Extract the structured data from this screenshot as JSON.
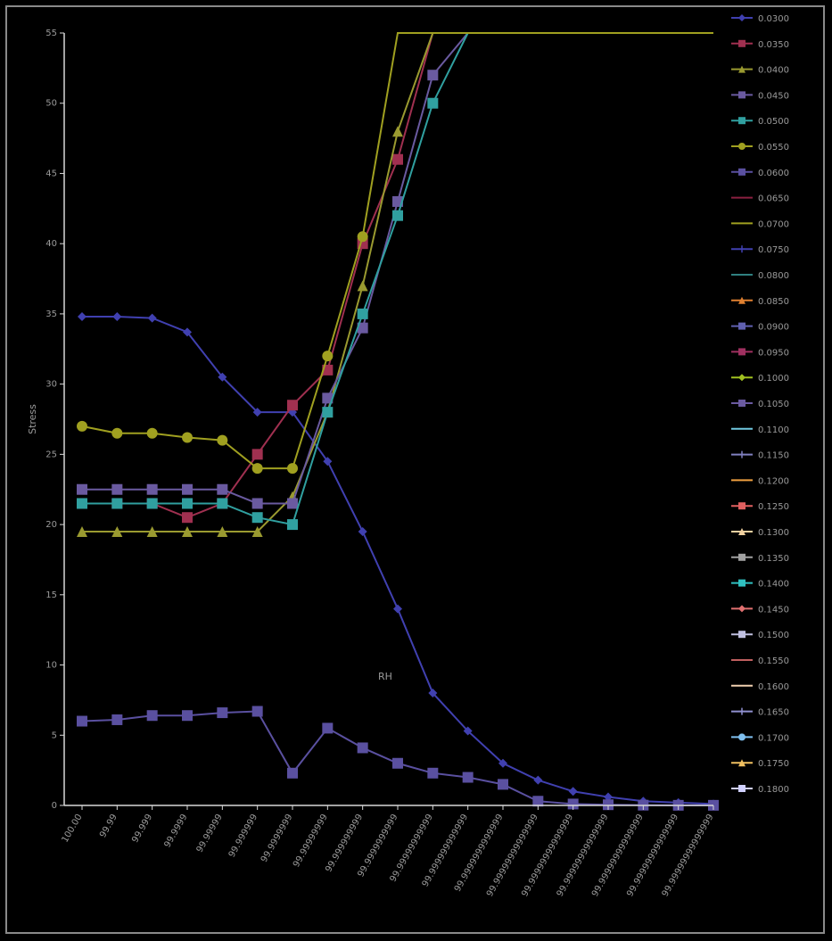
{
  "chart_data": {
    "type": "line",
    "title": "",
    "xlabel": "RH",
    "ylabel": "Stress",
    "ylim": [
      0,
      55
    ],
    "y_ticks": [
      "0",
      "5",
      "10",
      "15",
      "20",
      "25",
      "30",
      "35",
      "40",
      "45",
      "50",
      "55"
    ],
    "grid": false,
    "legend_position": "right",
    "colors": {
      "background": "#000000",
      "axis": "#d8d8d8",
      "tick_text": "#9a9a9a",
      "frame": "#8a8a8a"
    },
    "x": [
      "100.00",
      "99.99",
      "99.999",
      "99.9999",
      "99.99999",
      "99.999999",
      "99.9999999",
      "99.99999999",
      "99.999999999",
      "99.9999999999",
      "99.99999999999",
      "99.999999999999",
      "99.9999999999999",
      "99.99999999999999",
      "99.99999999999999",
      "99.99999999999999",
      "99.99999999999999",
      "99.99999999999999",
      "99.99999999999999"
    ],
    "series": [
      {
        "name": "",
        "color": "#4040b0",
        "marker": "diamond",
        "values": [
          34.8,
          34.8,
          34.7,
          33.7,
          30.5,
          28.0,
          28.0,
          24.5,
          19.5,
          14.0,
          8.0,
          5.3,
          3.0,
          1.8,
          1.0,
          0.6,
          0.3,
          0.2,
          0.1
        ]
      },
      {
        "name": "",
        "color": "#a03050",
        "marker": "square",
        "values": [
          21.5,
          21.5,
          21.5,
          20.5,
          21.5,
          25.0,
          28.5,
          31.0,
          40.0,
          46.0,
          55,
          55,
          55,
          55,
          55,
          55,
          55,
          55,
          55
        ]
      },
      {
        "name": "",
        "color": "#9a9a30",
        "marker": "triangle",
        "values": [
          19.5,
          19.5,
          19.5,
          19.5,
          19.5,
          19.5,
          22.0,
          28.0,
          37.0,
          48.0,
          55,
          55,
          55,
          55,
          55,
          55,
          55,
          55,
          55
        ]
      },
      {
        "name": "",
        "color": "#6a5aa0",
        "marker": "square",
        "values": [
          22.5,
          22.5,
          22.5,
          22.5,
          22.5,
          21.5,
          21.5,
          29.0,
          34.0,
          43.0,
          52.0,
          55,
          55,
          55,
          55,
          55,
          55,
          55,
          55
        ]
      },
      {
        "name": "",
        "color": "#30a0a0",
        "marker": "square",
        "values": [
          21.5,
          21.5,
          21.5,
          21.5,
          21.5,
          20.5,
          20.0,
          28.0,
          35.0,
          42.0,
          50.0,
          55,
          55,
          55,
          55,
          55,
          55,
          55,
          55
        ]
      },
      {
        "name": "",
        "color": "#a0a020",
        "marker": "circle",
        "values": [
          27.0,
          26.5,
          26.5,
          26.2,
          26.0,
          24.0,
          24.0,
          32.0,
          40.5,
          55,
          55,
          55,
          55,
          55,
          55,
          55,
          55,
          55,
          55
        ]
      },
      {
        "name": "",
        "color": "#5a50a0",
        "marker": "square",
        "values": [
          6.0,
          6.1,
          6.4,
          6.4,
          6.6,
          6.7,
          2.3,
          5.5,
          4.1,
          3.0,
          2.3,
          2.0,
          1.5,
          0.3,
          0.1,
          0.05,
          0.02,
          0.01,
          0.01
        ]
      }
    ]
  },
  "legend_entries": [
    {
      "label": "0.0300",
      "color": "#4040b0",
      "marker": "diamond"
    },
    {
      "label": "0.0350",
      "color": "#a03050",
      "marker": "square"
    },
    {
      "label": "0.0400",
      "color": "#9a9a30",
      "marker": "triangle"
    },
    {
      "label": "0.0450",
      "color": "#6a5aa0",
      "marker": "square"
    },
    {
      "label": "0.0500",
      "color": "#30a0a0",
      "marker": "square"
    },
    {
      "label": "0.0550",
      "color": "#a0a020",
      "marker": "circle"
    },
    {
      "label": "0.0600",
      "color": "#5a50a0",
      "marker": "square"
    },
    {
      "label": "0.0650",
      "color": "#8a2040",
      "marker": "none"
    },
    {
      "label": "0.0700",
      "color": "#a0a020",
      "marker": "none"
    },
    {
      "label": "0.0750",
      "color": "#4040b0",
      "marker": "cross"
    },
    {
      "label": "0.0800",
      "color": "#308080",
      "marker": "none"
    },
    {
      "label": "0.0850",
      "color": "#e08030",
      "marker": "triangle"
    },
    {
      "label": "0.0900",
      "color": "#6060b0",
      "marker": "square"
    },
    {
      "label": "0.0950",
      "color": "#a03060",
      "marker": "square"
    },
    {
      "label": "0.1000",
      "color": "#a0c020",
      "marker": "diamond"
    },
    {
      "label": "0.1050",
      "color": "#6a5aa0",
      "marker": "square"
    },
    {
      "label": "0.1100",
      "color": "#70c8e0",
      "marker": "none"
    },
    {
      "label": "0.1150",
      "color": "#8080c0",
      "marker": "cross"
    },
    {
      "label": "0.1200",
      "color": "#f0a040",
      "marker": "none"
    },
    {
      "label": "0.1250",
      "color": "#e06060",
      "marker": "square"
    },
    {
      "label": "0.1300",
      "color": "#f0d0a0",
      "marker": "triangle"
    },
    {
      "label": "0.1350",
      "color": "#a0a0a0",
      "marker": "square"
    },
    {
      "label": "0.1400",
      "color": "#30c0c0",
      "marker": "square"
    },
    {
      "label": "0.1450",
      "color": "#e07070",
      "marker": "diamond"
    },
    {
      "label": "0.1500",
      "color": "#c0c0e0",
      "marker": "square"
    },
    {
      "label": "0.1550",
      "color": "#c06060",
      "marker": "none"
    },
    {
      "label": "0.1600",
      "color": "#f0d0b0",
      "marker": "none"
    },
    {
      "label": "0.1650",
      "color": "#9090d0",
      "marker": "cross"
    },
    {
      "label": "0.1700",
      "color": "#80c0f0",
      "marker": "circle"
    },
    {
      "label": "0.1750",
      "color": "#f0c060",
      "marker": "triangle"
    },
    {
      "label": "0.1800",
      "color": "#d0d0ff",
      "marker": "square"
    }
  ]
}
